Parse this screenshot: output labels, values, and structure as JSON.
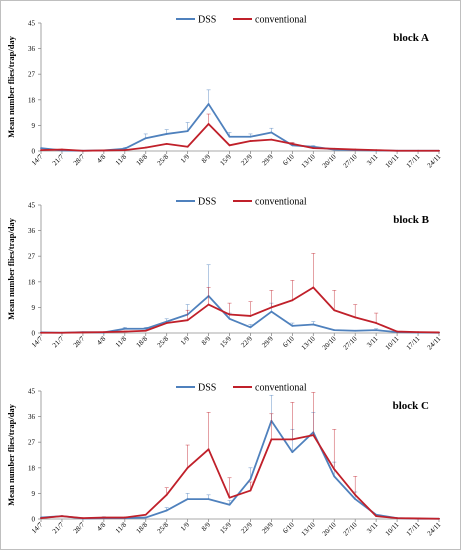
{
  "chart_data": [
    {
      "type": "line",
      "title": "block A",
      "ylabel": "Mean number flies/trap/day",
      "xlabel": "",
      "ylim": [
        0,
        45
      ],
      "yticks": [
        0,
        9,
        18,
        27,
        36,
        45
      ],
      "grid": false,
      "legend": "top-center",
      "categories": [
        "14/7",
        "21/7",
        "28/7",
        "4/8",
        "11/8",
        "18/8",
        "25/8",
        "1/9",
        "8/9",
        "15/9",
        "22/9",
        "29/9",
        "6/10",
        "13/10",
        "20/10",
        "27/10",
        "3/11",
        "10/11",
        "17/11",
        "24/11"
      ],
      "series": [
        {
          "name": "DSS",
          "color": "#4f81bd",
          "values": [
            1.0,
            0.2,
            0.1,
            0.2,
            0.8,
            4.5,
            6.0,
            7.0,
            16.5,
            5.0,
            5.0,
            6.5,
            2.0,
            1.5,
            0.5,
            0.3,
            0.2,
            0.1,
            0.1,
            0.1
          ],
          "error": [
            0,
            0,
            0,
            0,
            0.5,
            1.5,
            1.5,
            3.0,
            5.0,
            1.5,
            1.0,
            1.5,
            0.8,
            0.4,
            0,
            0,
            0,
            0,
            0,
            0
          ]
        },
        {
          "name": "conventional",
          "color": "#c0202a",
          "values": [
            0.3,
            0.5,
            0.1,
            0.2,
            0.3,
            1.2,
            2.5,
            1.5,
            9.5,
            2.0,
            3.5,
            4.0,
            2.5,
            1.0,
            0.8,
            0.5,
            0.3,
            0.1,
            0.1,
            0.1
          ],
          "error": [
            0,
            0,
            0,
            0,
            0,
            0,
            0,
            0,
            3.5,
            0,
            0,
            0,
            0.5,
            0,
            0,
            0,
            0,
            0,
            0,
            0
          ]
        }
      ]
    },
    {
      "type": "line",
      "title": "block B",
      "ylabel": "Mean number flies/trap/day",
      "xlabel": "",
      "ylim": [
        0,
        45
      ],
      "yticks": [
        0,
        9,
        18,
        27,
        36,
        45
      ],
      "grid": false,
      "legend": "top-center",
      "categories": [
        "14/7",
        "21/7",
        "28/7",
        "4/8",
        "11/8",
        "18/8",
        "25/8",
        "1/9",
        "8/9",
        "15/9",
        "22/9",
        "29/9",
        "6/10",
        "13/10",
        "20/10",
        "27/10",
        "3/11",
        "10/11",
        "17/11",
        "24/11"
      ],
      "series": [
        {
          "name": "DSS",
          "color": "#4f81bd",
          "values": [
            0.2,
            0.1,
            0.3,
            0.2,
            1.5,
            1.5,
            4.0,
            6.5,
            13.0,
            5.0,
            2.0,
            7.5,
            2.5,
            3.0,
            1.0,
            0.8,
            1.0,
            0.3,
            0.2,
            0.1
          ],
          "error": [
            0,
            0,
            0,
            0,
            0.5,
            0.5,
            1.0,
            3.5,
            11.0,
            2.0,
            1.0,
            3.0,
            1.0,
            1.0,
            0,
            0,
            0.5,
            0,
            0,
            0
          ]
        },
        {
          "name": "conventional",
          "color": "#c0202a",
          "values": [
            0.1,
            0.1,
            0.2,
            0.3,
            0.5,
            0.8,
            3.5,
            4.5,
            10.0,
            6.5,
            6.0,
            9.0,
            11.5,
            16.0,
            8.0,
            5.5,
            3.5,
            0.5,
            0.3,
            0.2
          ],
          "error": [
            0,
            0,
            0,
            0,
            0,
            0,
            0,
            3.5,
            6.0,
            4.0,
            5.0,
            6.0,
            7.0,
            12.0,
            7.0,
            4.5,
            3.5,
            0,
            0,
            0
          ]
        }
      ]
    },
    {
      "type": "line",
      "title": "block C",
      "ylabel": "Mean number flies/trap/day",
      "xlabel": "",
      "ylim": [
        0,
        45
      ],
      "yticks": [
        0,
        9,
        18,
        27,
        36,
        45
      ],
      "grid": false,
      "legend": "top-center",
      "categories": [
        "14/7",
        "21/7",
        "28/7",
        "4/8",
        "11/8",
        "18/8",
        "25/8",
        "1/9",
        "8/9",
        "15/9",
        "22/9",
        "29/9",
        "6/10",
        "13/10",
        "20/10",
        "27/10",
        "3/11",
        "10/11",
        "17/11",
        "24/11"
      ],
      "series": [
        {
          "name": "DSS",
          "color": "#4f81bd",
          "values": [
            0.5,
            1.0,
            0.2,
            0.3,
            0.3,
            0.5,
            3.0,
            7.0,
            7.0,
            5.0,
            14.0,
            34.5,
            23.5,
            30.5,
            15.0,
            7.0,
            1.5,
            0.3,
            0.1,
            0.1
          ],
          "error": [
            0,
            0,
            0,
            0.5,
            0,
            0,
            1.0,
            2.0,
            1.5,
            1.5,
            4.0,
            9.0,
            8.0,
            7.0,
            5.0,
            2.5,
            0,
            0,
            0,
            0
          ]
        },
        {
          "name": "conventional",
          "color": "#c0202a",
          "values": [
            0.3,
            1.0,
            0.3,
            0.5,
            0.5,
            1.5,
            8.5,
            18.0,
            24.5,
            7.5,
            10.0,
            28.0,
            28.0,
            29.5,
            17.5,
            8.5,
            1.0,
            0.3,
            0.2,
            0.1
          ],
          "error": [
            0,
            0,
            0,
            0,
            0,
            0,
            2.5,
            8.0,
            13.0,
            7.0,
            3.0,
            9.0,
            13.0,
            15.0,
            14.0,
            6.5,
            0,
            0,
            0,
            0
          ]
        }
      ]
    }
  ]
}
